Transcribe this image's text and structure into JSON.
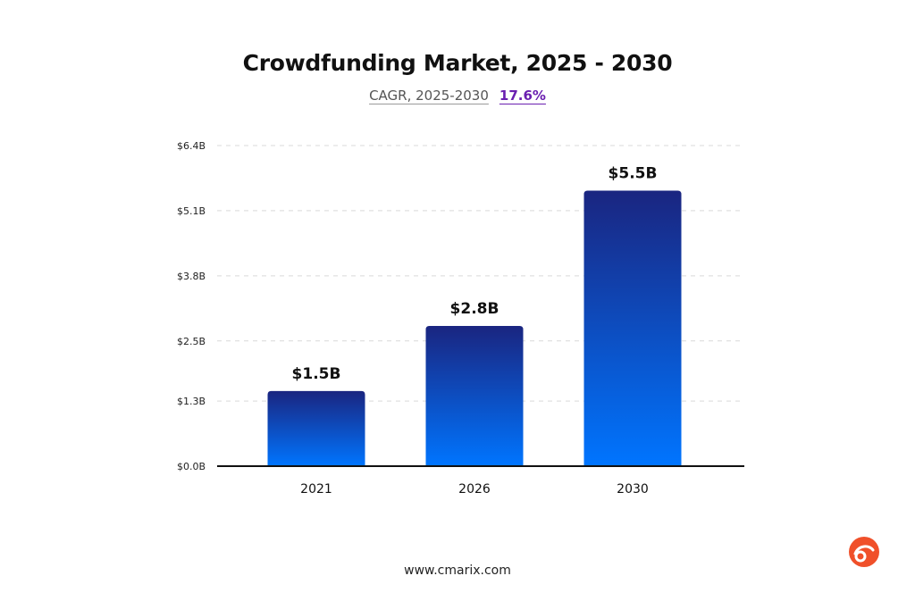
{
  "chart_data": {
    "type": "bar",
    "title": "Crowdfunding Market, 2025 - 2030",
    "subtitle_label": "CAGR, 2025-2030",
    "subtitle_value": "17.6%",
    "categories": [
      "2021",
      "2026",
      "2030"
    ],
    "values": [
      1.5,
      2.8,
      5.5
    ],
    "data_labels": [
      "$1.5B",
      "$2.8B",
      "$5.5B"
    ],
    "y_ticks": [
      0.0,
      1.3,
      2.5,
      3.8,
      5.1,
      6.4
    ],
    "y_tick_labels": [
      "$0.0B",
      "$1.3B",
      "$2.5B",
      "$3.8B",
      "$5.1B",
      "$6.4B"
    ],
    "ylim": [
      0,
      6.4
    ],
    "xlabel": "",
    "ylabel": "",
    "grid": true,
    "legend": "none",
    "colors": {
      "bar_top": "#1a2580",
      "bar_bottom": "#0075ff",
      "accent": "#6a1fb0",
      "grid": "#d9d9d9",
      "axis": "#111111",
      "logo": "#f0502a"
    }
  },
  "footer": {
    "url": "www.cmarix.com"
  },
  "logo": {
    "icon": "cmarix-logo-icon"
  }
}
